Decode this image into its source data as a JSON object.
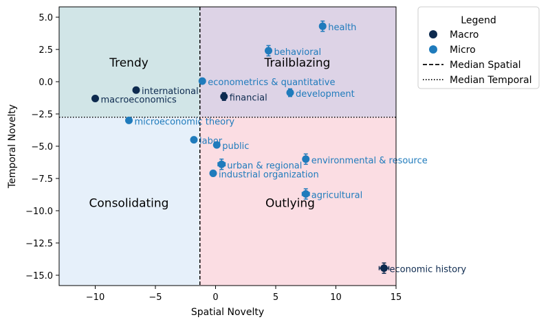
{
  "chart_data": {
    "type": "scatter",
    "xlabel": "Spatial Novelty",
    "ylabel": "Temporal Novelty",
    "xlim": [
      -13,
      15
    ],
    "ylim": [
      -15.8,
      5.8
    ],
    "xticks": [
      -10,
      -5,
      0,
      5,
      10,
      15
    ],
    "yticks": [
      5.0,
      2.5,
      0.0,
      -2.5,
      -5.0,
      -7.5,
      -10.0,
      -12.5,
      -15.0
    ],
    "xtick_labels": [
      "−10",
      "−5",
      "0",
      "5",
      "10",
      "15"
    ],
    "ytick_labels": [
      "5.0",
      "2.5",
      "0.0",
      "−2.5",
      "−5.0",
      "−7.5",
      "−10.0",
      "−12.5",
      "−15.0"
    ],
    "median_spatial": -1.3,
    "median_temporal": -2.75,
    "quadrants": [
      {
        "name": "Trendy",
        "x": -7.2,
        "y": 1.5,
        "color": "#d1e5e7"
      },
      {
        "name": "Trailblazing",
        "x": 6.8,
        "y": 1.5,
        "color": "#ddd3e6"
      },
      {
        "name": "Consolidating",
        "x": -7.2,
        "y": -9.4,
        "color": "#e6f0fa"
      },
      {
        "name": "Outlying",
        "x": 6.2,
        "y": -9.4,
        "color": "#fbdde3"
      }
    ],
    "colors": {
      "Macro": "#0d2a4f",
      "Micro": "#1f7bbc"
    },
    "series": [
      {
        "name": "Macro",
        "points": [
          {
            "label": "macroeconomics",
            "x": -10.0,
            "y": -1.3,
            "xerr": 0.15,
            "yerr": 0.15
          },
          {
            "label": "international",
            "x": -6.6,
            "y": -0.65,
            "xerr": 0.15,
            "yerr": 0.2
          },
          {
            "label": "financial",
            "x": 0.7,
            "y": -1.15,
            "xerr": 0.2,
            "yerr": 0.3
          },
          {
            "label": "economic history",
            "x": 14.0,
            "y": -14.45,
            "xerr": 0.4,
            "yerr": 0.4
          }
        ]
      },
      {
        "name": "Micro",
        "points": [
          {
            "label": "health",
            "x": 8.9,
            "y": 4.3,
            "xerr": 0.2,
            "yerr": 0.4
          },
          {
            "label": "behavioral",
            "x": 4.4,
            "y": 2.4,
            "xerr": 0.2,
            "yerr": 0.4
          },
          {
            "label": "econometrics & quantitative",
            "x": -1.1,
            "y": 0.05,
            "xerr": 0.15,
            "yerr": 0.15
          },
          {
            "label": "development",
            "x": 6.2,
            "y": -0.85,
            "xerr": 0.2,
            "yerr": 0.3
          },
          {
            "label": "microeconomic theory",
            "x": -7.2,
            "y": -3.0,
            "xerr": 0.15,
            "yerr": 0.15
          },
          {
            "label": "labor",
            "x": -1.8,
            "y": -4.5,
            "xerr": 0.15,
            "yerr": 0.15
          },
          {
            "label": "public",
            "x": 0.1,
            "y": -4.9,
            "xerr": 0.2,
            "yerr": 0.2
          },
          {
            "label": "environmental & resource",
            "x": 7.5,
            "y": -6.0,
            "xerr": 0.2,
            "yerr": 0.4
          },
          {
            "label": "urban & regional",
            "x": 0.5,
            "y": -6.4,
            "xerr": 0.3,
            "yerr": 0.4
          },
          {
            "label": "industrial organization",
            "x": -0.2,
            "y": -7.1,
            "xerr": 0.2,
            "yerr": 0.2
          },
          {
            "label": "agricultural",
            "x": 7.5,
            "y": -8.7,
            "xerr": 0.3,
            "yerr": 0.4
          }
        ]
      }
    ],
    "legend": {
      "title": "Legend",
      "position": "upper right, outside",
      "entries": [
        "Macro",
        "Micro",
        "Median Spatial",
        "Median Temporal"
      ]
    }
  }
}
